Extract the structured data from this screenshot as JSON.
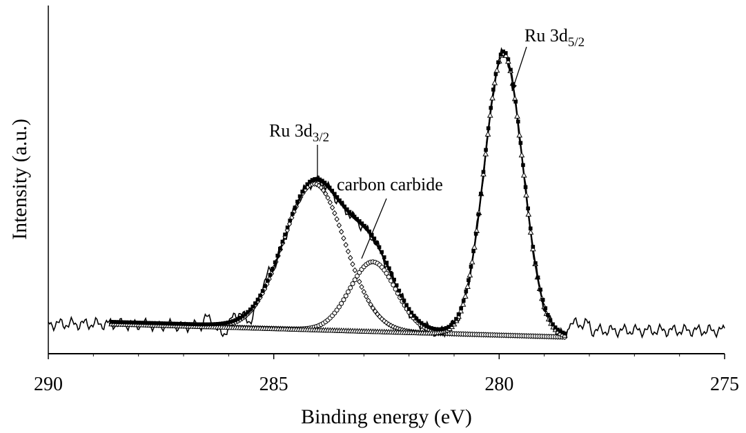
{
  "chart_data": {
    "type": "scatter",
    "title": "",
    "xlabel": "Binding energy (eV)",
    "ylabel": "Intensity (a.u.)",
    "xlim": [
      290,
      275
    ],
    "x_reversed": true,
    "ylim": [
      -0.05,
      1.0
    ],
    "grid": false,
    "legend": "none",
    "x_ticks": [
      "290",
      "285",
      "280",
      "275"
    ],
    "x_tick_values": [
      290,
      285,
      280,
      275
    ],
    "y_ticks_shown": false,
    "annotations": [
      {
        "base": "Ru 3d",
        "sub": "5/2",
        "text": "Ru 3d5/2",
        "x": 279.9,
        "y": 0.88
      },
      {
        "base": "Ru 3d",
        "sub": "3/2",
        "text": "Ru 3d3/2",
        "x": 284.1,
        "y": 0.53
      },
      {
        "base": "carbon carbide",
        "sub": "",
        "text": "carbon carbide",
        "x": 282.8,
        "y": 0.44
      }
    ],
    "series": [
      {
        "label": "raw spectrum",
        "style": "solid-thin",
        "x_range": [
          290,
          275
        ],
        "baseline": 0.04
      },
      {
        "label": "fitted envelope",
        "style": "solid-thick",
        "x_range": [
          288.6,
          278.5
        ]
      },
      {
        "label": "fit points",
        "style": "filled-squares",
        "x_range": [
          288.6,
          278.5
        ]
      },
      {
        "label": "Ru 3d3/2 component",
        "style": "open-diamonds",
        "center": 284.1,
        "height": 0.44,
        "fwhm": 1.6
      },
      {
        "label": "carbide component",
        "style": "open-circles",
        "center": 282.8,
        "height": 0.21,
        "fwhm": 1.2
      },
      {
        "label": "Ru 3d5/2 component",
        "style": "triangles",
        "center": 279.9,
        "height": 0.85,
        "fwhm": 1.0
      },
      {
        "label": "background",
        "style": "filled-dots",
        "x_range": [
          288.6,
          278.5
        ],
        "start": 0.04,
        "end": 0.0
      }
    ]
  }
}
